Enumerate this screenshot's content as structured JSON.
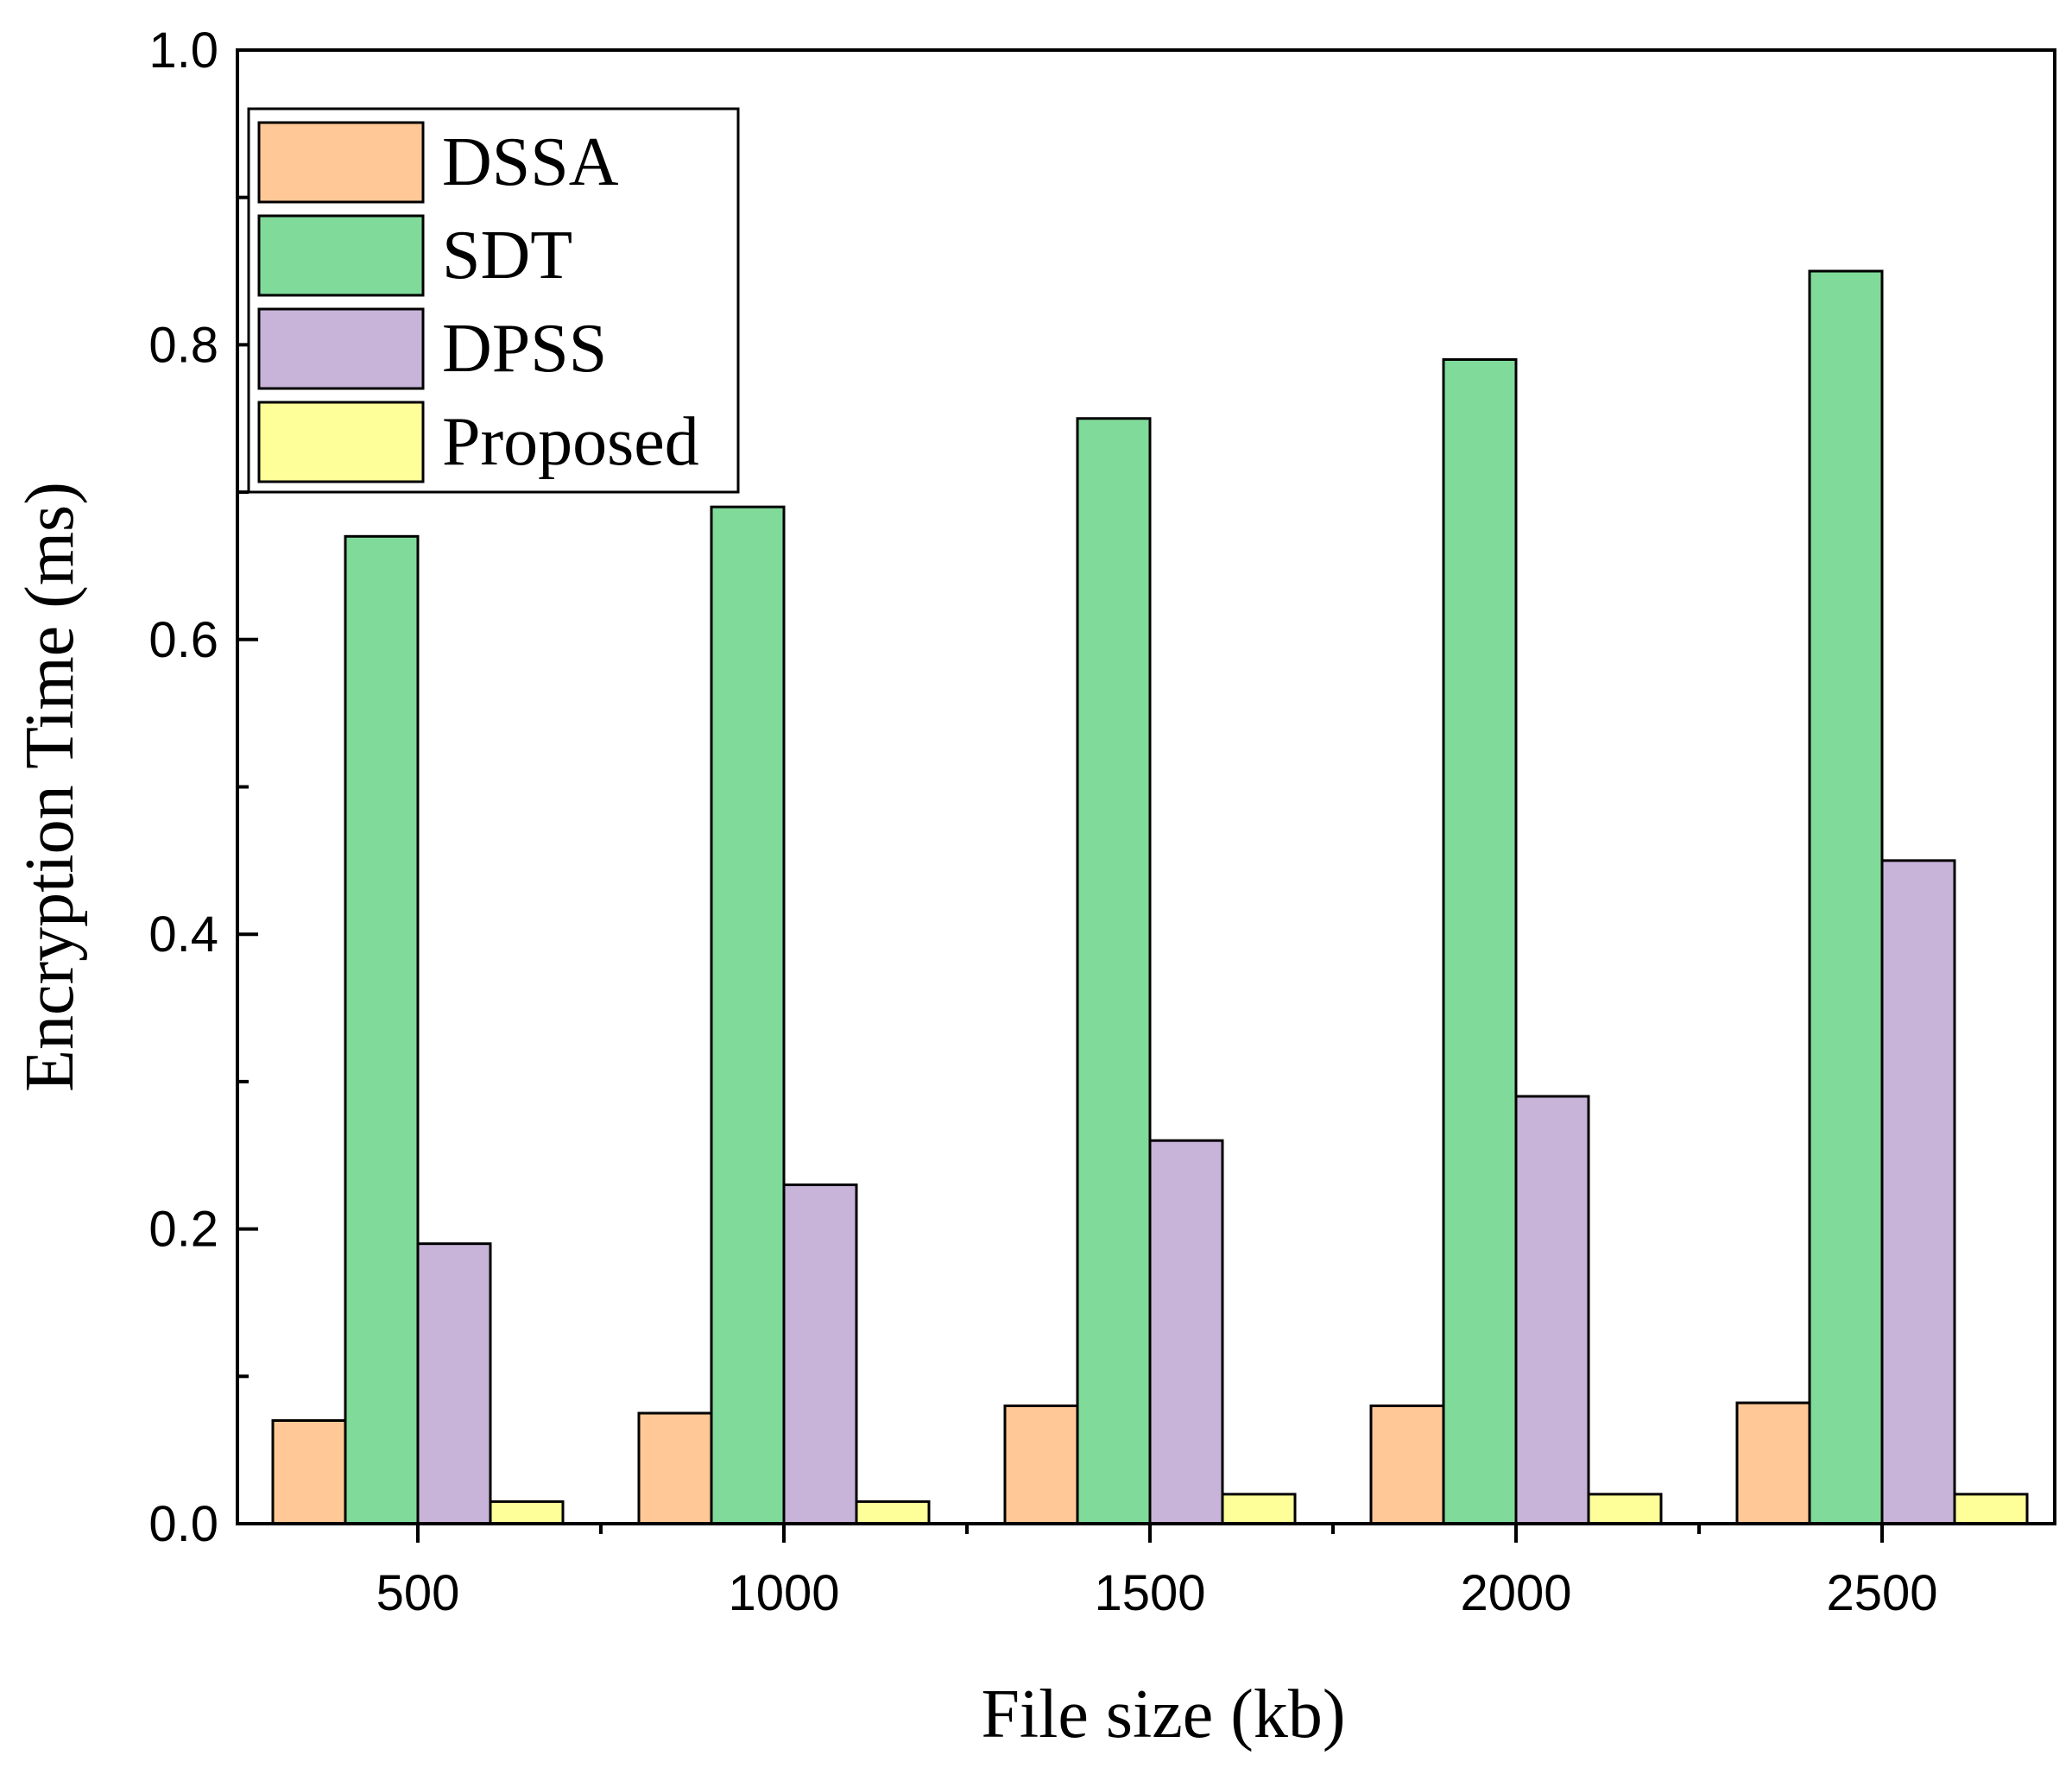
{
  "chart_data": {
    "type": "bar",
    "title": "",
    "xlabel": "File size (kb)",
    "ylabel": "Encryption Time (ms)",
    "ylim": [
      0,
      1.0
    ],
    "yticks": [
      "0.0",
      "0.2",
      "0.4",
      "0.6",
      "0.8",
      "1.0"
    ],
    "categories": [
      "500",
      "1000",
      "1500",
      "2000",
      "2500"
    ],
    "series": [
      {
        "name": "DSSA",
        "color": "#FFC896",
        "values": [
          0.07,
          0.075,
          0.08,
          0.08,
          0.082
        ]
      },
      {
        "name": "SDT",
        "color": "#80DA9A",
        "values": [
          0.67,
          0.69,
          0.75,
          0.79,
          0.85
        ]
      },
      {
        "name": "DPSS",
        "color": "#C8B3D9",
        "values": [
          0.19,
          0.23,
          0.26,
          0.29,
          0.45
        ]
      },
      {
        "name": "Proposed",
        "color": "#FFFF99",
        "values": [
          0.015,
          0.015,
          0.02,
          0.02,
          0.02
        ]
      }
    ],
    "legend_position": "top-left",
    "grid": false
  }
}
